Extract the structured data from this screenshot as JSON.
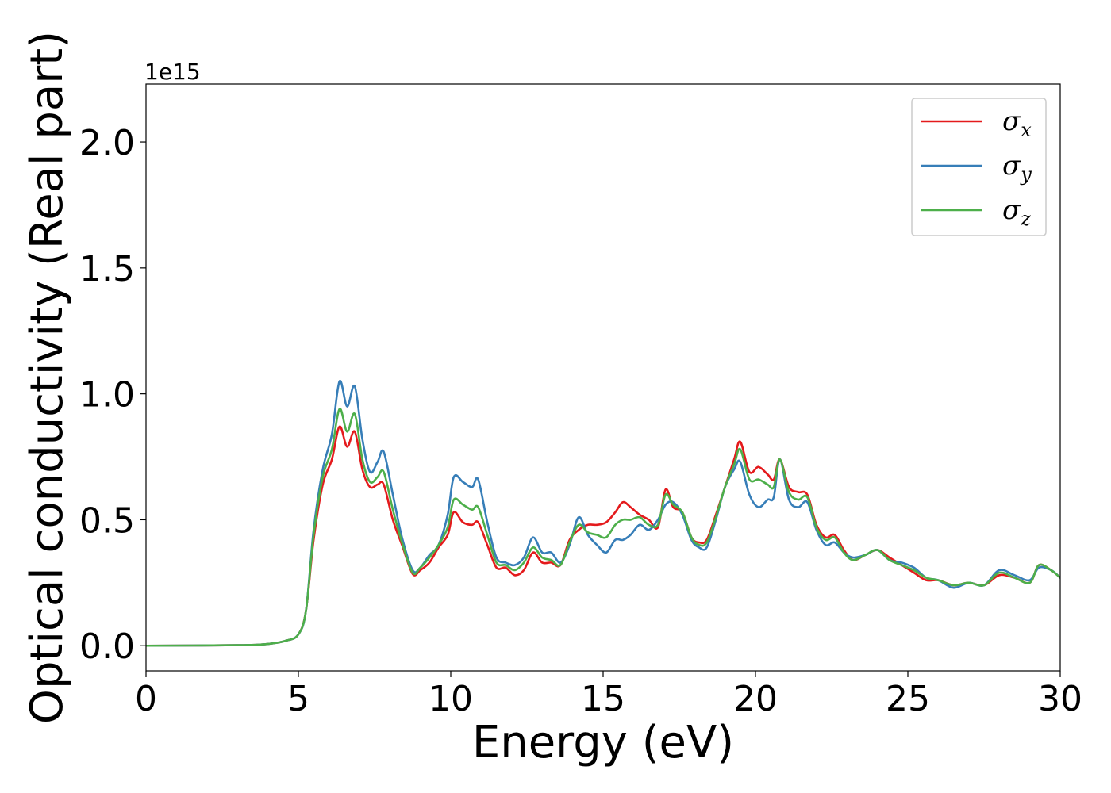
{
  "chart_data": {
    "type": "line",
    "xlabel": "Energy (eV)",
    "ylabel": "Optical conductivity (Real part)",
    "offset_text": "1e15",
    "xlim": [
      0,
      30
    ],
    "ylim": [
      -0.1,
      2.23
    ],
    "xticks": [
      0,
      5,
      10,
      15,
      20,
      25,
      30
    ],
    "xtick_labels": [
      "0",
      "5",
      "10",
      "15",
      "20",
      "25",
      "30"
    ],
    "yticks": [
      0.0,
      0.5,
      1.0,
      1.5,
      2.0
    ],
    "ytick_labels": [
      "0.0",
      "0.5",
      "1.0",
      "1.5",
      "2.0"
    ],
    "grid": false,
    "legend_position": "top-right",
    "series": [
      {
        "name": "σx",
        "symbol": "σ",
        "subscript": "x",
        "color": "#e41a1c",
        "points": [
          [
            0,
            0
          ],
          [
            3,
            0.002
          ],
          [
            4,
            0.007
          ],
          [
            4.6,
            0.02
          ],
          [
            5,
            0.045
          ],
          [
            5.25,
            0.14
          ],
          [
            5.5,
            0.42
          ],
          [
            5.8,
            0.64
          ],
          [
            6.1,
            0.74
          ],
          [
            6.35,
            0.87
          ],
          [
            6.6,
            0.79
          ],
          [
            6.85,
            0.85
          ],
          [
            7.1,
            0.7
          ],
          [
            7.35,
            0.63
          ],
          [
            7.6,
            0.64
          ],
          [
            7.8,
            0.64
          ],
          [
            8.1,
            0.5
          ],
          [
            8.4,
            0.4
          ],
          [
            8.75,
            0.285
          ],
          [
            9,
            0.3
          ],
          [
            9.3,
            0.33
          ],
          [
            9.6,
            0.39
          ],
          [
            9.9,
            0.44
          ],
          [
            10.1,
            0.53
          ],
          [
            10.4,
            0.49
          ],
          [
            10.7,
            0.48
          ],
          [
            10.9,
            0.49
          ],
          [
            11.2,
            0.4
          ],
          [
            11.5,
            0.31
          ],
          [
            11.8,
            0.31
          ],
          [
            12.1,
            0.28
          ],
          [
            12.4,
            0.3
          ],
          [
            12.7,
            0.37
          ],
          [
            13,
            0.33
          ],
          [
            13.3,
            0.33
          ],
          [
            13.6,
            0.32
          ],
          [
            13.9,
            0.42
          ],
          [
            14.2,
            0.46
          ],
          [
            14.5,
            0.48
          ],
          [
            14.8,
            0.48
          ],
          [
            15.1,
            0.49
          ],
          [
            15.4,
            0.53
          ],
          [
            15.65,
            0.57
          ],
          [
            15.9,
            0.55
          ],
          [
            16.2,
            0.52
          ],
          [
            16.5,
            0.5
          ],
          [
            16.8,
            0.47
          ],
          [
            17.05,
            0.62
          ],
          [
            17.3,
            0.55
          ],
          [
            17.6,
            0.53
          ],
          [
            17.9,
            0.43
          ],
          [
            18.15,
            0.41
          ],
          [
            18.4,
            0.42
          ],
          [
            18.7,
            0.52
          ],
          [
            19,
            0.63
          ],
          [
            19.3,
            0.74
          ],
          [
            19.5,
            0.81
          ],
          [
            19.8,
            0.69
          ],
          [
            20.1,
            0.71
          ],
          [
            20.4,
            0.68
          ],
          [
            20.6,
            0.66
          ],
          [
            20.8,
            0.74
          ],
          [
            21.1,
            0.63
          ],
          [
            21.4,
            0.61
          ],
          [
            21.7,
            0.6
          ],
          [
            22,
            0.48
          ],
          [
            22.3,
            0.43
          ],
          [
            22.6,
            0.44
          ],
          [
            22.9,
            0.38
          ],
          [
            23.2,
            0.34
          ],
          [
            23.6,
            0.36
          ],
          [
            24,
            0.38
          ],
          [
            24.4,
            0.35
          ],
          [
            24.8,
            0.32
          ],
          [
            25.2,
            0.29
          ],
          [
            25.6,
            0.26
          ],
          [
            26,
            0.26
          ],
          [
            26.5,
            0.24
          ],
          [
            27,
            0.25
          ],
          [
            27.5,
            0.24
          ],
          [
            28,
            0.28
          ],
          [
            28.5,
            0.27
          ],
          [
            29,
            0.25
          ],
          [
            29.3,
            0.32
          ],
          [
            29.7,
            0.3
          ],
          [
            30,
            0.27
          ]
        ]
      },
      {
        "name": "σy",
        "symbol": "σ",
        "subscript": "y",
        "color": "#377eb8",
        "points": [
          [
            0,
            0
          ],
          [
            3,
            0.002
          ],
          [
            4,
            0.007
          ],
          [
            4.6,
            0.02
          ],
          [
            5,
            0.045
          ],
          [
            5.25,
            0.14
          ],
          [
            5.5,
            0.46
          ],
          [
            5.8,
            0.7
          ],
          [
            6.1,
            0.84
          ],
          [
            6.35,
            1.05
          ],
          [
            6.6,
            0.95
          ],
          [
            6.85,
            1.03
          ],
          [
            7.1,
            0.82
          ],
          [
            7.35,
            0.69
          ],
          [
            7.6,
            0.73
          ],
          [
            7.8,
            0.77
          ],
          [
            8.1,
            0.6
          ],
          [
            8.4,
            0.43
          ],
          [
            8.75,
            0.3
          ],
          [
            9,
            0.31
          ],
          [
            9.3,
            0.36
          ],
          [
            9.6,
            0.4
          ],
          [
            9.9,
            0.52
          ],
          [
            10.1,
            0.67
          ],
          [
            10.4,
            0.65
          ],
          [
            10.7,
            0.63
          ],
          [
            10.9,
            0.66
          ],
          [
            11.2,
            0.49
          ],
          [
            11.5,
            0.35
          ],
          [
            11.8,
            0.33
          ],
          [
            12.1,
            0.32
          ],
          [
            12.4,
            0.35
          ],
          [
            12.7,
            0.43
          ],
          [
            13,
            0.37
          ],
          [
            13.3,
            0.37
          ],
          [
            13.6,
            0.33
          ],
          [
            13.9,
            0.4
          ],
          [
            14.2,
            0.51
          ],
          [
            14.5,
            0.44
          ],
          [
            14.8,
            0.4
          ],
          [
            15.1,
            0.37
          ],
          [
            15.4,
            0.42
          ],
          [
            15.65,
            0.42
          ],
          [
            15.9,
            0.44
          ],
          [
            16.2,
            0.48
          ],
          [
            16.5,
            0.46
          ],
          [
            16.8,
            0.5
          ],
          [
            17.05,
            0.56
          ],
          [
            17.3,
            0.57
          ],
          [
            17.6,
            0.52
          ],
          [
            17.9,
            0.42
          ],
          [
            18.15,
            0.39
          ],
          [
            18.4,
            0.39
          ],
          [
            18.7,
            0.5
          ],
          [
            19,
            0.63
          ],
          [
            19.3,
            0.7
          ],
          [
            19.5,
            0.73
          ],
          [
            19.8,
            0.6
          ],
          [
            20.1,
            0.55
          ],
          [
            20.4,
            0.58
          ],
          [
            20.6,
            0.59
          ],
          [
            20.8,
            0.74
          ],
          [
            21.1,
            0.58
          ],
          [
            21.4,
            0.55
          ],
          [
            21.7,
            0.57
          ],
          [
            22,
            0.46
          ],
          [
            22.3,
            0.4
          ],
          [
            22.6,
            0.41
          ],
          [
            22.9,
            0.37
          ],
          [
            23.2,
            0.35
          ],
          [
            23.6,
            0.36
          ],
          [
            24,
            0.38
          ],
          [
            24.4,
            0.34
          ],
          [
            24.8,
            0.33
          ],
          [
            25.2,
            0.31
          ],
          [
            25.6,
            0.27
          ],
          [
            26,
            0.26
          ],
          [
            26.5,
            0.23
          ],
          [
            27,
            0.25
          ],
          [
            27.5,
            0.24
          ],
          [
            28,
            0.3
          ],
          [
            28.5,
            0.28
          ],
          [
            29,
            0.26
          ],
          [
            29.3,
            0.31
          ],
          [
            29.7,
            0.3
          ],
          [
            30,
            0.27
          ]
        ]
      },
      {
        "name": "σz",
        "symbol": "σ",
        "subscript": "z",
        "color": "#4daf4a",
        "points": [
          [
            0,
            0
          ],
          [
            3,
            0.002
          ],
          [
            4,
            0.007
          ],
          [
            4.6,
            0.02
          ],
          [
            5,
            0.045
          ],
          [
            5.25,
            0.14
          ],
          [
            5.5,
            0.44
          ],
          [
            5.8,
            0.67
          ],
          [
            6.1,
            0.78
          ],
          [
            6.35,
            0.94
          ],
          [
            6.6,
            0.85
          ],
          [
            6.85,
            0.92
          ],
          [
            7.1,
            0.74
          ],
          [
            7.35,
            0.65
          ],
          [
            7.6,
            0.67
          ],
          [
            7.8,
            0.69
          ],
          [
            8.1,
            0.54
          ],
          [
            8.4,
            0.41
          ],
          [
            8.75,
            0.29
          ],
          [
            9,
            0.31
          ],
          [
            9.3,
            0.35
          ],
          [
            9.6,
            0.4
          ],
          [
            9.9,
            0.47
          ],
          [
            10.1,
            0.58
          ],
          [
            10.4,
            0.56
          ],
          [
            10.7,
            0.54
          ],
          [
            10.9,
            0.55
          ],
          [
            11.2,
            0.44
          ],
          [
            11.5,
            0.33
          ],
          [
            11.8,
            0.32
          ],
          [
            12.1,
            0.3
          ],
          [
            12.4,
            0.33
          ],
          [
            12.7,
            0.39
          ],
          [
            13,
            0.35
          ],
          [
            13.3,
            0.34
          ],
          [
            13.6,
            0.32
          ],
          [
            13.9,
            0.41
          ],
          [
            14.2,
            0.48
          ],
          [
            14.5,
            0.45
          ],
          [
            14.8,
            0.44
          ],
          [
            15.1,
            0.43
          ],
          [
            15.4,
            0.48
          ],
          [
            15.65,
            0.5
          ],
          [
            15.9,
            0.5
          ],
          [
            16.2,
            0.51
          ],
          [
            16.5,
            0.48
          ],
          [
            16.8,
            0.48
          ],
          [
            17.05,
            0.6
          ],
          [
            17.3,
            0.56
          ],
          [
            17.6,
            0.53
          ],
          [
            17.9,
            0.43
          ],
          [
            18.15,
            0.4
          ],
          [
            18.4,
            0.41
          ],
          [
            18.7,
            0.51
          ],
          [
            19,
            0.63
          ],
          [
            19.3,
            0.72
          ],
          [
            19.5,
            0.78
          ],
          [
            19.8,
            0.66
          ],
          [
            20.1,
            0.66
          ],
          [
            20.4,
            0.64
          ],
          [
            20.6,
            0.63
          ],
          [
            20.8,
            0.74
          ],
          [
            21.1,
            0.61
          ],
          [
            21.4,
            0.58
          ],
          [
            21.7,
            0.59
          ],
          [
            22,
            0.47
          ],
          [
            22.3,
            0.42
          ],
          [
            22.6,
            0.43
          ],
          [
            22.9,
            0.37
          ],
          [
            23.2,
            0.34
          ],
          [
            23.6,
            0.36
          ],
          [
            24,
            0.38
          ],
          [
            24.4,
            0.34
          ],
          [
            24.8,
            0.32
          ],
          [
            25.2,
            0.3
          ],
          [
            25.6,
            0.27
          ],
          [
            26,
            0.26
          ],
          [
            26.5,
            0.24
          ],
          [
            27,
            0.25
          ],
          [
            27.5,
            0.24
          ],
          [
            28,
            0.29
          ],
          [
            28.5,
            0.27
          ],
          [
            29,
            0.25
          ],
          [
            29.3,
            0.32
          ],
          [
            29.7,
            0.3
          ],
          [
            30,
            0.27
          ]
        ]
      }
    ]
  }
}
